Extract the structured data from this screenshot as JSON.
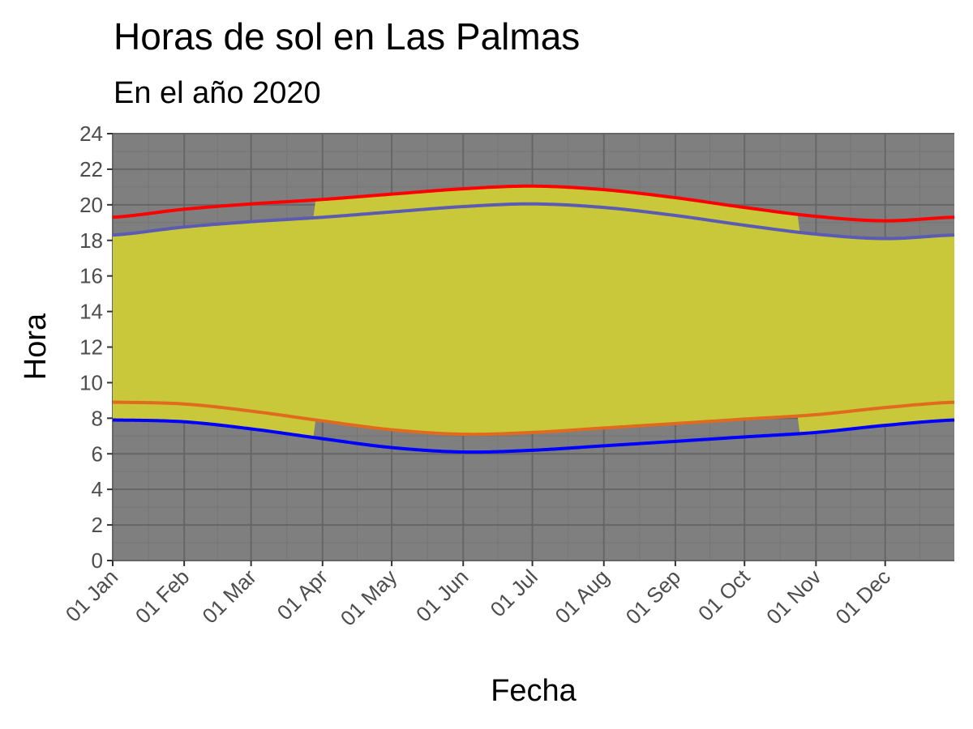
{
  "chart_data": {
    "type": "area",
    "title": "Horas de sol en Las Palmas",
    "subtitle": "En el año 2020",
    "xlabel": "Fecha",
    "ylabel": "Hora",
    "ylim": [
      0,
      24
    ],
    "y_ticks": [
      0,
      2,
      4,
      6,
      8,
      10,
      12,
      14,
      16,
      18,
      20,
      22,
      24
    ],
    "xlim": [
      "2020-01-01",
      "2020-12-31"
    ],
    "x_ticks": [
      {
        "date": "2020-01-01",
        "label": "01 Jan"
      },
      {
        "date": "2020-02-01",
        "label": "01 Feb"
      },
      {
        "date": "2020-03-01",
        "label": "01 Mar"
      },
      {
        "date": "2020-04-01",
        "label": "01 Apr"
      },
      {
        "date": "2020-05-01",
        "label": "01 May"
      },
      {
        "date": "2020-06-01",
        "label": "01 Jun"
      },
      {
        "date": "2020-07-01",
        "label": "01 Jul"
      },
      {
        "date": "2020-08-01",
        "label": "01 Aug"
      },
      {
        "date": "2020-09-01",
        "label": "01 Sep"
      },
      {
        "date": "2020-10-01",
        "label": "01 Oct"
      },
      {
        "date": "2020-11-01",
        "label": "01 Nov"
      },
      {
        "date": "2020-12-01",
        "label": "01 Dec"
      }
    ],
    "grid": true,
    "dst_period": [
      "2020-03-29",
      "2020-10-25"
    ],
    "series": [
      {
        "color": "#ff0000",
        "x": [
          "2020-01-01",
          "2020-02-01",
          "2020-03-01",
          "2020-04-01",
          "2020-05-01",
          "2020-06-01",
          "2020-07-01",
          "2020-08-01",
          "2020-09-01",
          "2020-10-01",
          "2020-11-01",
          "2020-12-01",
          "2020-12-31"
        ],
        "y": [
          19.3,
          19.75,
          20.05,
          20.3,
          20.6,
          20.9,
          21.05,
          20.85,
          20.4,
          19.85,
          19.35,
          19.1,
          19.3
        ]
      },
      {
        "color": "#5b5bb3",
        "x": [
          "2020-01-01",
          "2020-02-01",
          "2020-03-01",
          "2020-04-01",
          "2020-05-01",
          "2020-06-01",
          "2020-07-01",
          "2020-08-01",
          "2020-09-01",
          "2020-10-01",
          "2020-11-01",
          "2020-12-01",
          "2020-12-31"
        ],
        "y": [
          18.3,
          18.75,
          19.05,
          19.3,
          19.6,
          19.9,
          20.05,
          19.85,
          19.4,
          18.85,
          18.35,
          18.1,
          18.3
        ]
      },
      {
        "color": "#e06a1e",
        "x": [
          "2020-01-01",
          "2020-02-01",
          "2020-03-01",
          "2020-04-01",
          "2020-05-01",
          "2020-06-01",
          "2020-07-01",
          "2020-08-01",
          "2020-09-01",
          "2020-10-01",
          "2020-11-01",
          "2020-12-01",
          "2020-12-31"
        ],
        "y": [
          8.9,
          8.8,
          8.4,
          7.85,
          7.35,
          7.1,
          7.2,
          7.45,
          7.7,
          7.95,
          8.2,
          8.6,
          8.9
        ]
      },
      {
        "color": "#0000ff",
        "x": [
          "2020-01-01",
          "2020-02-01",
          "2020-03-01",
          "2020-04-01",
          "2020-05-01",
          "2020-06-01",
          "2020-07-01",
          "2020-08-01",
          "2020-09-01",
          "2020-10-01",
          "2020-11-01",
          "2020-12-01",
          "2020-12-31"
        ],
        "y": [
          7.9,
          7.8,
          7.4,
          6.85,
          6.35,
          6.1,
          6.2,
          6.45,
          6.7,
          6.95,
          7.2,
          7.6,
          7.9
        ]
      }
    ],
    "colors": {
      "panel_background": "#7f7f7f",
      "grid_major": "#666666",
      "grid_minor": "#767676",
      "daylight_fill": "#c8c83a"
    }
  }
}
